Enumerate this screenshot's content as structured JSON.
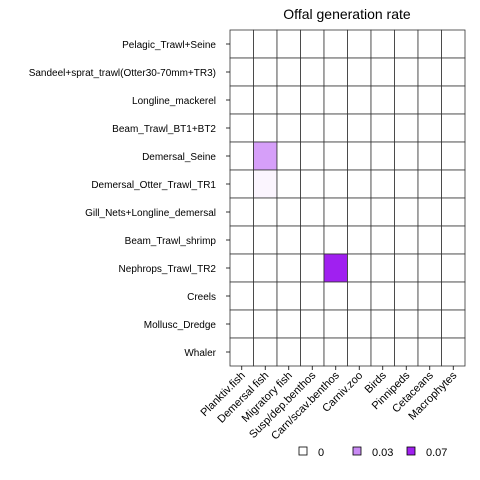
{
  "chart_data": {
    "type": "heatmap",
    "title": "Offal generation rate",
    "rows": [
      "Pelagic_Trawl+Seine",
      "Sandeel+sprat_trawl(Otter30-70mm+TR3)",
      "Longline_mackerel",
      "Beam_Trawl_BT1+BT2",
      "Demersal_Seine",
      "Demersal_Otter_Trawl_TR1",
      "Gill_Nets+Longline_demersal",
      "Beam_Trawl_shrimp",
      "Nephrops_Trawl_TR2",
      "Creels",
      "Mollusc_Dredge",
      "Whaler"
    ],
    "columns": [
      "Planktiv.fish",
      "Demersal fish",
      "Migratory fish",
      "Susp/dep.benthos",
      "Carn/scav.benthos",
      "Carniv.zoo",
      "Birds",
      "Pinnipeds",
      "Cetaceans",
      "Macrophytes"
    ],
    "values": [
      [
        0,
        0,
        0,
        0,
        0,
        0,
        0,
        0,
        0,
        0
      ],
      [
        0,
        0,
        0,
        0,
        0,
        0,
        0,
        0,
        0,
        0
      ],
      [
        0,
        0,
        0,
        0,
        0,
        0,
        0,
        0,
        0,
        0
      ],
      [
        0,
        0,
        0,
        0,
        0,
        0,
        0,
        0,
        0,
        0
      ],
      [
        0,
        0.03,
        0,
        0,
        0,
        0,
        0,
        0,
        0,
        0
      ],
      [
        0,
        0.003,
        0,
        0,
        0,
        0,
        0,
        0,
        0,
        0
      ],
      [
        0,
        0,
        0,
        0,
        0,
        0,
        0,
        0,
        0,
        0
      ],
      [
        0,
        0,
        0,
        0,
        0,
        0,
        0,
        0,
        0,
        0
      ],
      [
        0,
        0,
        0,
        0,
        0.07,
        0,
        0,
        0,
        0,
        0
      ],
      [
        0,
        0,
        0,
        0,
        0,
        0,
        0,
        0,
        0,
        0
      ],
      [
        0,
        0,
        0,
        0,
        0,
        0,
        0,
        0,
        0,
        0
      ],
      [
        0,
        0,
        0,
        0,
        0,
        0,
        0,
        0,
        0,
        0
      ]
    ],
    "color_scale": {
      "low": "#ffffff",
      "high": "#a020f0",
      "max": 0.07
    },
    "legend": [
      {
        "label": "0",
        "color": "#ffffff"
      },
      {
        "label": "0.03",
        "color": "#c98af4"
      },
      {
        "label": "0.07",
        "color": "#a020f0"
      }
    ],
    "legend_position": "bottom-right",
    "grid": true
  }
}
